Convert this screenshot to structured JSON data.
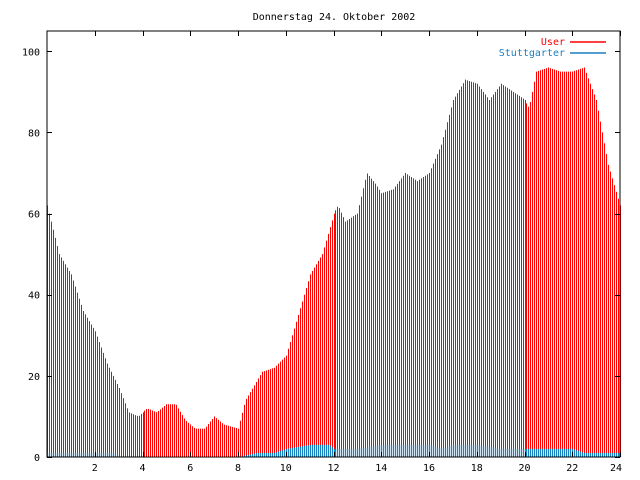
{
  "chart_data": {
    "type": "bar",
    "title": "Donnerstag 24. Oktober 2002",
    "xlabel": "",
    "ylabel": "",
    "xlim": [
      0,
      24
    ],
    "ylim": [
      0,
      105
    ],
    "x_ticks": [
      2,
      4,
      6,
      8,
      10,
      12,
      14,
      16,
      18,
      20,
      22,
      24
    ],
    "x_tick_labels": [
      "2",
      "4",
      "6",
      "8",
      "10",
      "12",
      "14",
      "16",
      "18",
      "20",
      "22",
      "24"
    ],
    "y_ticks": [
      0,
      20,
      40,
      60,
      80,
      100
    ],
    "y_tick_labels": [
      "0",
      "20",
      "40",
      "60",
      "80",
      "100"
    ],
    "grid": false,
    "legend_position": "top-right",
    "series": [
      {
        "name": "User",
        "style": "impulses",
        "color": "#ff0000",
        "points": [
          [
            0,
            62
          ],
          [
            0.5,
            50
          ],
          [
            1,
            45
          ],
          [
            1.5,
            36
          ],
          [
            2,
            31
          ],
          [
            2.5,
            23
          ],
          [
            3,
            17
          ],
          [
            3.4,
            11
          ],
          [
            3.8,
            10
          ],
          [
            4.2,
            12
          ],
          [
            4.6,
            11
          ],
          [
            5,
            13
          ],
          [
            5.4,
            13
          ],
          [
            5.8,
            9
          ],
          [
            6.2,
            7
          ],
          [
            6.6,
            7
          ],
          [
            7,
            10
          ],
          [
            7.4,
            8
          ],
          [
            8,
            7
          ],
          [
            8.3,
            14
          ],
          [
            8.7,
            18
          ],
          [
            9,
            21
          ],
          [
            9.5,
            22
          ],
          [
            10,
            25
          ],
          [
            10.5,
            35
          ],
          [
            11,
            45
          ],
          [
            11.5,
            50
          ],
          [
            12,
            60
          ],
          [
            12.2,
            62
          ],
          [
            12.5,
            58
          ],
          [
            13,
            60
          ],
          [
            13.4,
            70
          ],
          [
            13.8,
            67
          ],
          [
            14,
            65
          ],
          [
            14.5,
            66
          ],
          [
            15,
            70
          ],
          [
            15.5,
            68
          ],
          [
            16,
            70
          ],
          [
            16.5,
            77
          ],
          [
            17,
            88
          ],
          [
            17.5,
            93
          ],
          [
            18,
            92
          ],
          [
            18.5,
            88
          ],
          [
            19,
            92
          ],
          [
            19.5,
            90
          ],
          [
            20,
            88
          ],
          [
            20.2,
            86
          ],
          [
            20.5,
            95
          ],
          [
            21,
            96
          ],
          [
            21.5,
            95
          ],
          [
            22,
            95
          ],
          [
            22.5,
            96
          ],
          [
            23,
            88
          ],
          [
            23.5,
            72
          ],
          [
            24,
            62
          ]
        ]
      },
      {
        "name": "Stuttgarter",
        "style": "impulses",
        "color": "#1a7fbf",
        "points": [
          [
            0,
            1
          ],
          [
            1,
            1
          ],
          [
            2,
            1
          ],
          [
            2.8,
            1
          ],
          [
            3,
            0
          ],
          [
            8,
            0
          ],
          [
            8.8,
            1
          ],
          [
            9.5,
            1
          ],
          [
            10,
            2
          ],
          [
            11,
            3
          ],
          [
            11.8,
            3
          ],
          [
            12,
            2
          ],
          [
            13,
            2
          ],
          [
            14,
            3
          ],
          [
            15,
            3
          ],
          [
            16,
            3
          ],
          [
            16.5,
            2
          ],
          [
            17,
            3
          ],
          [
            18,
            3
          ],
          [
            19,
            2
          ],
          [
            19.5,
            2
          ],
          [
            20,
            2
          ],
          [
            21,
            2
          ],
          [
            22,
            2
          ],
          [
            22.5,
            1
          ],
          [
            23,
            1
          ],
          [
            24,
            1
          ]
        ]
      }
    ]
  }
}
